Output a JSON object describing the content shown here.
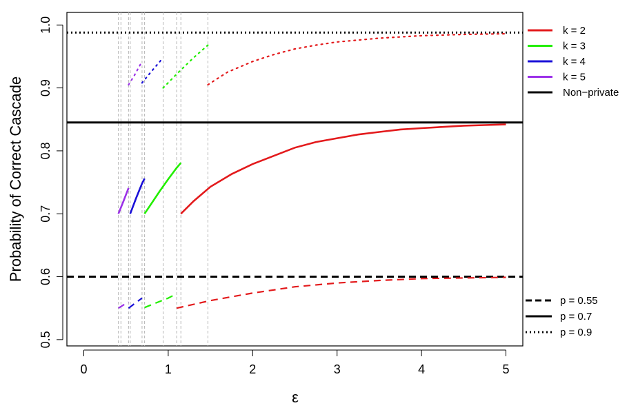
{
  "chart_data": {
    "type": "line",
    "title": "",
    "xlabel": "ε",
    "ylabel": "Probability of Correct Cascade",
    "xlim": [
      -0.2,
      5.2
    ],
    "ylim": [
      0.49,
      1.02
    ],
    "xticks": [
      0,
      1,
      2,
      3,
      4,
      5
    ],
    "xtick_labels": [
      "0",
      "1",
      "2",
      "3",
      "4",
      "5"
    ],
    "yticks": [
      0.5,
      0.6,
      0.7,
      0.8,
      0.9,
      1.0
    ],
    "ytick_labels": [
      "0.5",
      "0.6",
      "0.7",
      "0.8",
      "0.9",
      "1.0"
    ],
    "grid": false,
    "vertical_reference_x": [
      0.41,
      0.44,
      0.53,
      0.55,
      0.69,
      0.72,
      0.94,
      1.1,
      1.15,
      1.47
    ],
    "nonprivate_levels": [
      {
        "p": "0.55",
        "y": 0.6
      },
      {
        "p": "0.7",
        "y": 0.845
      },
      {
        "p": "0.9",
        "y": 0.988
      }
    ],
    "colors": {
      "k2": "#e31a1c",
      "k3": "#22ee00",
      "k4": "#1a10d8",
      "k5": "#9b30e8",
      "nonprivate": "#000000"
    },
    "series": [
      {
        "k": "2",
        "p": "0.7",
        "color": "#e31a1c",
        "x": [
          1.15,
          1.3,
          1.5,
          1.75,
          2.0,
          2.25,
          2.5,
          2.75,
          3.0,
          3.25,
          3.5,
          3.75,
          4.0,
          4.25,
          4.5,
          4.75,
          5.0
        ],
        "y": [
          0.7,
          0.72,
          0.743,
          0.763,
          0.779,
          0.792,
          0.805,
          0.814,
          0.82,
          0.826,
          0.83,
          0.834,
          0.836,
          0.838,
          0.84,
          0.841,
          0.842
        ]
      },
      {
        "k": "2",
        "p": "0.55",
        "color": "#e31a1c",
        "x": [
          1.1,
          1.5,
          2.0,
          2.5,
          3.0,
          3.5,
          4.0,
          4.5,
          5.0
        ],
        "y": [
          0.55,
          0.562,
          0.574,
          0.584,
          0.59,
          0.594,
          0.597,
          0.598,
          0.599
        ]
      },
      {
        "k": "2",
        "p": "0.9",
        "color": "#e31a1c",
        "x": [
          1.47,
          1.7,
          2.0,
          2.25,
          2.5,
          2.75,
          3.0,
          3.5,
          4.0,
          4.5,
          5.0
        ],
        "y": [
          0.905,
          0.925,
          0.942,
          0.953,
          0.962,
          0.968,
          0.973,
          0.979,
          0.983,
          0.985,
          0.986
        ]
      },
      {
        "k": "3",
        "p": "0.7",
        "color": "#22ee00",
        "x": [
          0.72,
          0.8,
          0.9,
          1.0,
          1.1,
          1.15
        ],
        "y": [
          0.7,
          0.716,
          0.736,
          0.755,
          0.773,
          0.781
        ]
      },
      {
        "k": "3",
        "p": "0.55",
        "color": "#22ee00",
        "x": [
          0.72,
          0.85,
          1.0,
          1.1
        ],
        "y": [
          0.551,
          0.558,
          0.566,
          0.573
        ]
      },
      {
        "k": "3",
        "p": "0.9",
        "color": "#22ee00",
        "x": [
          0.94,
          1.1,
          1.3,
          1.47
        ],
        "y": [
          0.9,
          0.922,
          0.948,
          0.968
        ]
      },
      {
        "k": "4",
        "p": "0.7",
        "color": "#1a10d8",
        "x": [
          0.55,
          0.62,
          0.69,
          0.72
        ],
        "y": [
          0.7,
          0.725,
          0.748,
          0.756
        ]
      },
      {
        "k": "4",
        "p": "0.55",
        "color": "#1a10d8",
        "x": [
          0.53,
          0.6,
          0.69
        ],
        "y": [
          0.55,
          0.557,
          0.566
        ]
      },
      {
        "k": "4",
        "p": "0.9",
        "color": "#1a10d8",
        "x": [
          0.69,
          0.8,
          0.94
        ],
        "y": [
          0.908,
          0.926,
          0.948
        ]
      },
      {
        "k": "5",
        "p": "0.7",
        "color": "#9b30e8",
        "x": [
          0.41,
          0.47,
          0.53
        ],
        "y": [
          0.7,
          0.72,
          0.741
        ]
      },
      {
        "k": "5",
        "p": "0.55",
        "color": "#9b30e8",
        "x": [
          0.41,
          0.47,
          0.53
        ],
        "y": [
          0.55,
          0.555,
          0.56
        ]
      },
      {
        "k": "5",
        "p": "0.9",
        "color": "#9b30e8",
        "x": [
          0.53,
          0.6,
          0.69
        ],
        "y": [
          0.905,
          0.92,
          0.942
        ]
      }
    ],
    "legend_top": {
      "placement": "top-right-outside",
      "entries": [
        {
          "label": "k = 2",
          "color": "#e31a1c"
        },
        {
          "label": "k = 3",
          "color": "#22ee00"
        },
        {
          "label": "k = 4",
          "color": "#1a10d8"
        },
        {
          "label": "k = 5",
          "color": "#9b30e8"
        },
        {
          "label": "Non−private",
          "color": "#000000"
        }
      ]
    },
    "legend_bottom": {
      "placement": "bottom-right-outside",
      "entries": [
        {
          "label": "p = 0.55",
          "style": "dashed"
        },
        {
          "label": "p = 0.7",
          "style": "solid"
        },
        {
          "label": "p = 0.9",
          "style": "dotted"
        }
      ]
    }
  }
}
